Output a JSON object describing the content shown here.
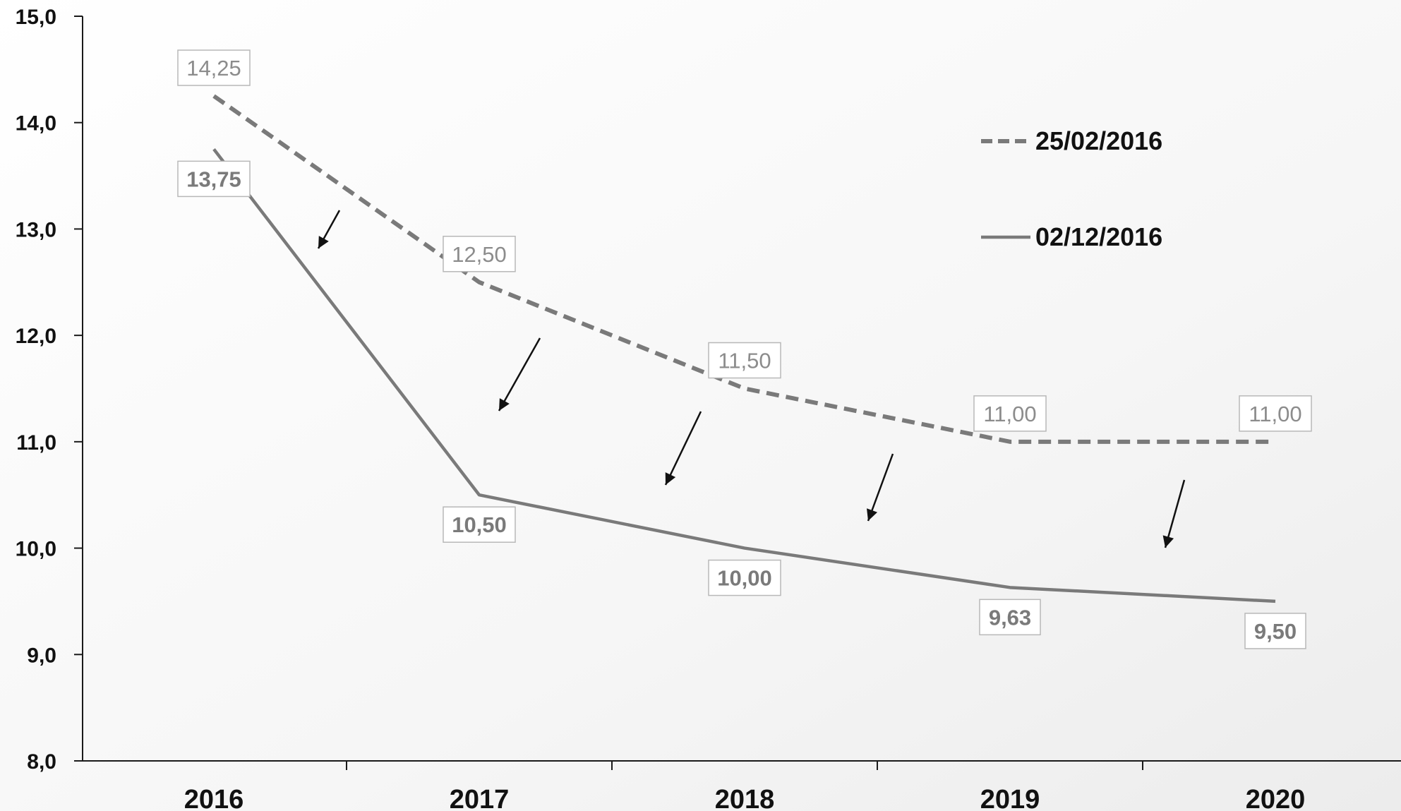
{
  "chart_data": {
    "type": "line",
    "categories": [
      "2016",
      "2017",
      "2018",
      "2019",
      "2020"
    ],
    "ylim": [
      8.0,
      15.0
    ],
    "yticks": [
      "8,0",
      "9,0",
      "10,0",
      "11,0",
      "12,0",
      "13,0",
      "14,0",
      "15,0"
    ],
    "ytick_values": [
      8,
      9,
      10,
      11,
      12,
      13,
      14,
      15
    ],
    "grid": false,
    "legend_position": "top-right",
    "series": [
      {
        "name": "25/02/2016",
        "style": "dashed",
        "color": "#7a7a7a",
        "values": [
          14.25,
          12.5,
          11.5,
          11.0,
          11.0
        ],
        "labels": [
          "14,25",
          "12,50",
          "11,50",
          "11,00",
          "11,00"
        ],
        "label_color": "#8c8c8c",
        "label_bold": false
      },
      {
        "name": "02/12/2016",
        "style": "solid",
        "color": "#7a7a7a",
        "values": [
          13.75,
          10.5,
          10.0,
          9.63,
          9.5
        ],
        "labels": [
          "13,75",
          "10,50",
          "10,00",
          "9,63",
          "9,50"
        ],
        "label_color": "#7a7a7a",
        "label_bold": true
      }
    ],
    "annotations": {
      "type": "downward-arrows",
      "count": 5,
      "color": "#111111"
    }
  }
}
